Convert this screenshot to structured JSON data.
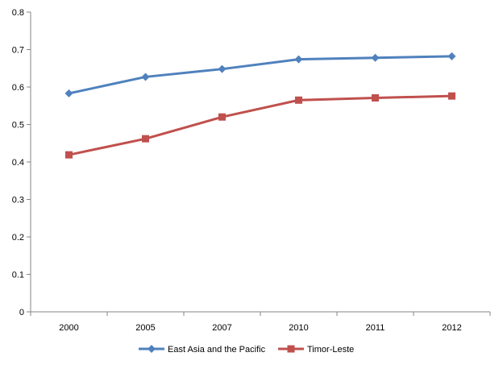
{
  "chart_data": {
    "type": "line",
    "categories": [
      "2000",
      "2005",
      "2007",
      "2010",
      "2011",
      "2012"
    ],
    "series": [
      {
        "name": "East Asia and the Pacific",
        "values": [
          0.583,
          0.627,
          0.648,
          0.674,
          0.678,
          0.682
        ],
        "color": "#4F81BD",
        "marker": "diamond"
      },
      {
        "name": "Timor-Leste",
        "values": [
          0.419,
          0.462,
          0.52,
          0.565,
          0.571,
          0.576
        ],
        "color": "#C0504D",
        "marker": "square"
      }
    ],
    "y_ticks": [
      "0",
      "0.1",
      "0.2",
      "0.3",
      "0.4",
      "0.5",
      "0.6",
      "0.7",
      "0.8"
    ],
    "ylim": [
      0,
      0.8
    ],
    "grid": false,
    "legend_position": "bottom"
  }
}
